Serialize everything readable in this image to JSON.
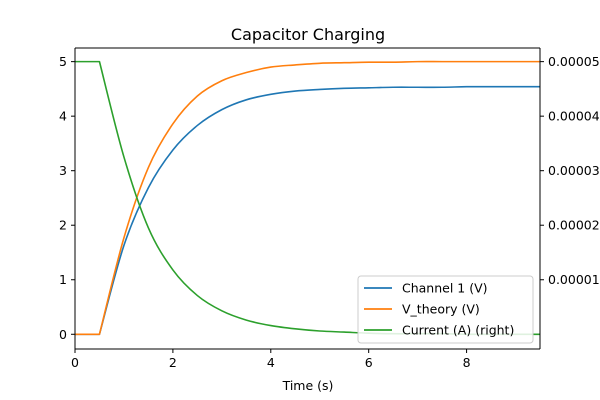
{
  "chart_data": {
    "type": "line",
    "title": "Capacitor Charging",
    "xlabel": "Time (s)",
    "ylabel": "",
    "y2label": "",
    "xlim": [
      0,
      9.5
    ],
    "ylim": [
      -0.27,
      5.25
    ],
    "y2lim": [
      -2.7e-06,
      5.25e-05
    ],
    "x_ticks": [
      0,
      2,
      4,
      6,
      8
    ],
    "x_tick_labels": [
      "0",
      "2",
      "4",
      "6",
      "8"
    ],
    "y_ticks": [
      0,
      1,
      2,
      3,
      4,
      5
    ],
    "y_tick_labels": [
      "0",
      "1",
      "2",
      "3",
      "4",
      "5"
    ],
    "y2_ticks": [
      1e-05,
      2e-05,
      3e-05,
      4e-05,
      5e-05
    ],
    "y2_tick_labels": [
      "0.00001",
      "0.00002",
      "0.00003",
      "0.00004",
      "0.00005"
    ],
    "grid": false,
    "legend_position": "lower-right",
    "series": [
      {
        "name": "Channel 1 (V)",
        "color": "#1f77b4",
        "axis": "left",
        "x": [
          0,
          0.5,
          1.0,
          1.5,
          2.0,
          2.5,
          3.0,
          3.5,
          4.0,
          4.5,
          5.0,
          5.5,
          6.0,
          6.5,
          7.0,
          7.5,
          8.0,
          8.5,
          9.0,
          9.5
        ],
        "y": [
          0,
          0,
          1.63,
          2.69,
          3.38,
          3.83,
          4.12,
          4.3,
          4.4,
          4.46,
          4.49,
          4.51,
          4.52,
          4.53,
          4.53,
          4.53,
          4.54,
          4.54,
          4.54,
          4.54
        ]
      },
      {
        "name": "V_theory (V)",
        "color": "#ff7f0e",
        "axis": "left",
        "x": [
          0,
          0.5,
          1.0,
          1.5,
          2.0,
          2.5,
          3.0,
          3.5,
          4.0,
          4.5,
          5.0,
          5.5,
          6.0,
          6.5,
          7.0,
          7.5,
          8.0,
          8.5,
          9.0,
          9.5
        ],
        "y": [
          0,
          0,
          1.77,
          3.06,
          3.86,
          4.37,
          4.65,
          4.8,
          4.9,
          4.94,
          4.97,
          4.98,
          4.99,
          4.99,
          5.0,
          5.0,
          5.0,
          5.0,
          5.0,
          5.0
        ]
      },
      {
        "name": "Current (A) (right)",
        "color": "#2ca02c",
        "axis": "right",
        "x": [
          0,
          0.5,
          1.0,
          1.5,
          2.0,
          2.5,
          3.0,
          3.5,
          4.0,
          4.5,
          5.0,
          5.5,
          6.0,
          6.5,
          7.0,
          7.5,
          8.0,
          8.5,
          9.0,
          9.5
        ],
        "y": [
          5e-05,
          5e-05,
          3.25e-05,
          1.95e-05,
          1.18e-05,
          7.1e-06,
          4.3e-06,
          2.6e-06,
          1.6e-06,
          1e-06,
          6e-07,
          4e-07,
          2e-07,
          1e-07,
          1e-07,
          1e-07,
          0.0,
          0.0,
          0.0,
          0.0
        ]
      }
    ]
  }
}
